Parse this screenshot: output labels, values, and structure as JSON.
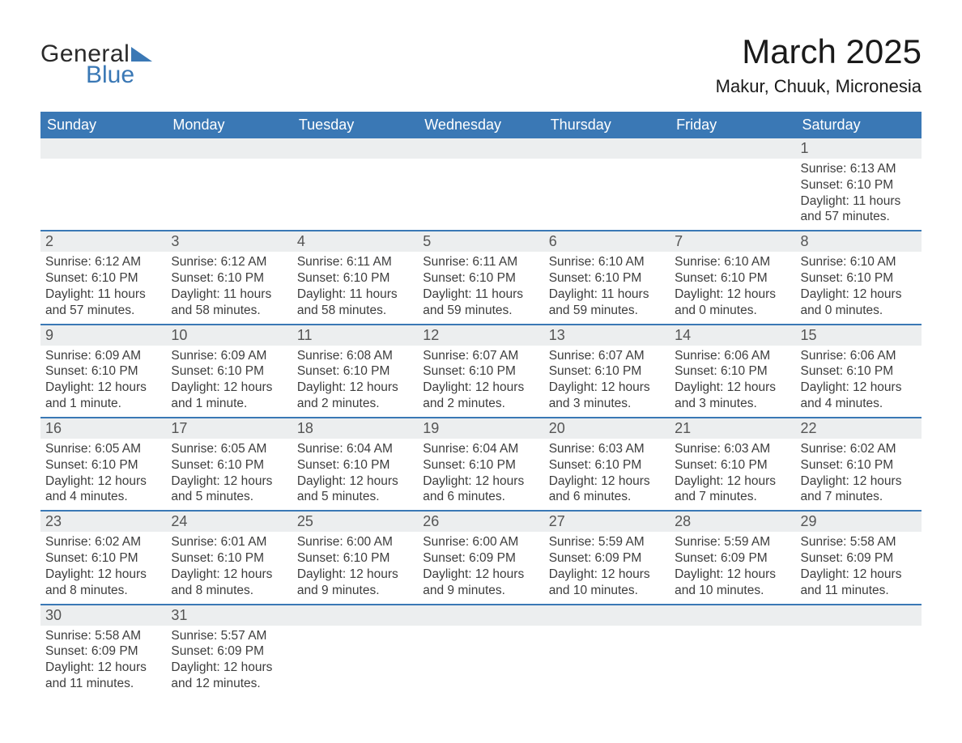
{
  "brand": {
    "word1": "General",
    "word2": "Blue",
    "accent": "#3a78b5"
  },
  "title": "March 2025",
  "location": "Makur, Chuuk, Micronesia",
  "colors": {
    "header_bg": "#3a78b5",
    "header_text": "#ffffff",
    "daynum_bg": "#eceeef",
    "text": "#3d3d3d",
    "row_divider": "#3a78b5"
  },
  "fonts": {
    "title_pt": 42,
    "location_pt": 22,
    "dow_pt": 18,
    "daynum_pt": 18,
    "body_pt": 15.5
  },
  "days_of_week": [
    "Sunday",
    "Monday",
    "Tuesday",
    "Wednesday",
    "Thursday",
    "Friday",
    "Saturday"
  ],
  "weeks": [
    [
      null,
      null,
      null,
      null,
      null,
      null,
      {
        "n": "1",
        "sunrise": "Sunrise: 6:13 AM",
        "sunset": "Sunset: 6:10 PM",
        "daylight": "Daylight: 11 hours and 57 minutes."
      }
    ],
    [
      {
        "n": "2",
        "sunrise": "Sunrise: 6:12 AM",
        "sunset": "Sunset: 6:10 PM",
        "daylight": "Daylight: 11 hours and 57 minutes."
      },
      {
        "n": "3",
        "sunrise": "Sunrise: 6:12 AM",
        "sunset": "Sunset: 6:10 PM",
        "daylight": "Daylight: 11 hours and 58 minutes."
      },
      {
        "n": "4",
        "sunrise": "Sunrise: 6:11 AM",
        "sunset": "Sunset: 6:10 PM",
        "daylight": "Daylight: 11 hours and 58 minutes."
      },
      {
        "n": "5",
        "sunrise": "Sunrise: 6:11 AM",
        "sunset": "Sunset: 6:10 PM",
        "daylight": "Daylight: 11 hours and 59 minutes."
      },
      {
        "n": "6",
        "sunrise": "Sunrise: 6:10 AM",
        "sunset": "Sunset: 6:10 PM",
        "daylight": "Daylight: 11 hours and 59 minutes."
      },
      {
        "n": "7",
        "sunrise": "Sunrise: 6:10 AM",
        "sunset": "Sunset: 6:10 PM",
        "daylight": "Daylight: 12 hours and 0 minutes."
      },
      {
        "n": "8",
        "sunrise": "Sunrise: 6:10 AM",
        "sunset": "Sunset: 6:10 PM",
        "daylight": "Daylight: 12 hours and 0 minutes."
      }
    ],
    [
      {
        "n": "9",
        "sunrise": "Sunrise: 6:09 AM",
        "sunset": "Sunset: 6:10 PM",
        "daylight": "Daylight: 12 hours and 1 minute."
      },
      {
        "n": "10",
        "sunrise": "Sunrise: 6:09 AM",
        "sunset": "Sunset: 6:10 PM",
        "daylight": "Daylight: 12 hours and 1 minute."
      },
      {
        "n": "11",
        "sunrise": "Sunrise: 6:08 AM",
        "sunset": "Sunset: 6:10 PM",
        "daylight": "Daylight: 12 hours and 2 minutes."
      },
      {
        "n": "12",
        "sunrise": "Sunrise: 6:07 AM",
        "sunset": "Sunset: 6:10 PM",
        "daylight": "Daylight: 12 hours and 2 minutes."
      },
      {
        "n": "13",
        "sunrise": "Sunrise: 6:07 AM",
        "sunset": "Sunset: 6:10 PM",
        "daylight": "Daylight: 12 hours and 3 minutes."
      },
      {
        "n": "14",
        "sunrise": "Sunrise: 6:06 AM",
        "sunset": "Sunset: 6:10 PM",
        "daylight": "Daylight: 12 hours and 3 minutes."
      },
      {
        "n": "15",
        "sunrise": "Sunrise: 6:06 AM",
        "sunset": "Sunset: 6:10 PM",
        "daylight": "Daylight: 12 hours and 4 minutes."
      }
    ],
    [
      {
        "n": "16",
        "sunrise": "Sunrise: 6:05 AM",
        "sunset": "Sunset: 6:10 PM",
        "daylight": "Daylight: 12 hours and 4 minutes."
      },
      {
        "n": "17",
        "sunrise": "Sunrise: 6:05 AM",
        "sunset": "Sunset: 6:10 PM",
        "daylight": "Daylight: 12 hours and 5 minutes."
      },
      {
        "n": "18",
        "sunrise": "Sunrise: 6:04 AM",
        "sunset": "Sunset: 6:10 PM",
        "daylight": "Daylight: 12 hours and 5 minutes."
      },
      {
        "n": "19",
        "sunrise": "Sunrise: 6:04 AM",
        "sunset": "Sunset: 6:10 PM",
        "daylight": "Daylight: 12 hours and 6 minutes."
      },
      {
        "n": "20",
        "sunrise": "Sunrise: 6:03 AM",
        "sunset": "Sunset: 6:10 PM",
        "daylight": "Daylight: 12 hours and 6 minutes."
      },
      {
        "n": "21",
        "sunrise": "Sunrise: 6:03 AM",
        "sunset": "Sunset: 6:10 PM",
        "daylight": "Daylight: 12 hours and 7 minutes."
      },
      {
        "n": "22",
        "sunrise": "Sunrise: 6:02 AM",
        "sunset": "Sunset: 6:10 PM",
        "daylight": "Daylight: 12 hours and 7 minutes."
      }
    ],
    [
      {
        "n": "23",
        "sunrise": "Sunrise: 6:02 AM",
        "sunset": "Sunset: 6:10 PM",
        "daylight": "Daylight: 12 hours and 8 minutes."
      },
      {
        "n": "24",
        "sunrise": "Sunrise: 6:01 AM",
        "sunset": "Sunset: 6:10 PM",
        "daylight": "Daylight: 12 hours and 8 minutes."
      },
      {
        "n": "25",
        "sunrise": "Sunrise: 6:00 AM",
        "sunset": "Sunset: 6:10 PM",
        "daylight": "Daylight: 12 hours and 9 minutes."
      },
      {
        "n": "26",
        "sunrise": "Sunrise: 6:00 AM",
        "sunset": "Sunset: 6:09 PM",
        "daylight": "Daylight: 12 hours and 9 minutes."
      },
      {
        "n": "27",
        "sunrise": "Sunrise: 5:59 AM",
        "sunset": "Sunset: 6:09 PM",
        "daylight": "Daylight: 12 hours and 10 minutes."
      },
      {
        "n": "28",
        "sunrise": "Sunrise: 5:59 AM",
        "sunset": "Sunset: 6:09 PM",
        "daylight": "Daylight: 12 hours and 10 minutes."
      },
      {
        "n": "29",
        "sunrise": "Sunrise: 5:58 AM",
        "sunset": "Sunset: 6:09 PM",
        "daylight": "Daylight: 12 hours and 11 minutes."
      }
    ],
    [
      {
        "n": "30",
        "sunrise": "Sunrise: 5:58 AM",
        "sunset": "Sunset: 6:09 PM",
        "daylight": "Daylight: 12 hours and 11 minutes."
      },
      {
        "n": "31",
        "sunrise": "Sunrise: 5:57 AM",
        "sunset": "Sunset: 6:09 PM",
        "daylight": "Daylight: 12 hours and 12 minutes."
      },
      null,
      null,
      null,
      null,
      null
    ]
  ]
}
